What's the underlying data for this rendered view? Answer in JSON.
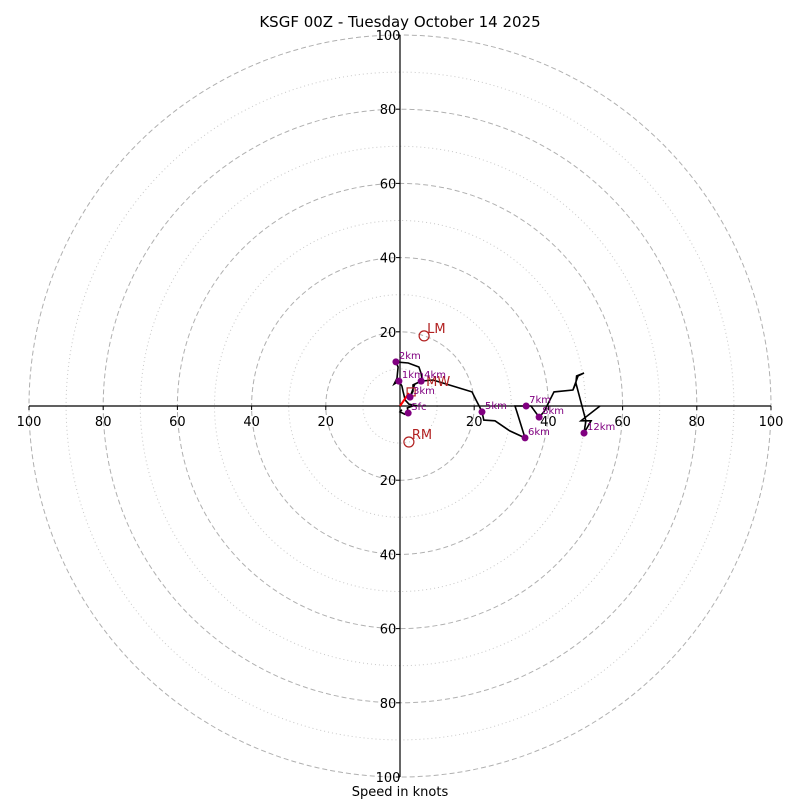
{
  "chart_data": {
    "type": "hodograph",
    "title": "KSGF 00Z - Tuesday October 14 2025",
    "xlabel": "Speed in knots",
    "units": "knots",
    "axis_range": [
      -100,
      100
    ],
    "ring_major": [
      20,
      40,
      60,
      80,
      100
    ],
    "ring_minor": [
      10,
      30,
      50,
      70,
      90
    ],
    "x_tick_labels": [
      "100",
      "80",
      "60",
      "40",
      "20",
      "20",
      "40",
      "60",
      "80",
      "100"
    ],
    "x_tick_values": [
      -100,
      -80,
      -60,
      -40,
      -20,
      20,
      40,
      60,
      80,
      100
    ],
    "y_tick_labels": [
      "100",
      "80",
      "60",
      "40",
      "20",
      "20",
      "40",
      "60",
      "80",
      "100"
    ],
    "y_tick_values": [
      100,
      80,
      60,
      40,
      20,
      -20,
      -40,
      -60,
      -80,
      -100
    ],
    "grid": true,
    "colors": {
      "trace": "#000000",
      "height_marker": "#800080",
      "storm_motion": "#b22222",
      "shear_vector": "#ff0000",
      "grid": "#b0b0b0",
      "axis": "#000000"
    },
    "trace": [
      [
        0.5,
        -1.0
      ],
      [
        0.0,
        -1.6
      ],
      [
        1.3,
        -2.2
      ],
      [
        2.2,
        -1.9
      ],
      [
        2.0,
        -0.5
      ],
      [
        4.0,
        0.2
      ],
      [
        2.4,
        0.5
      ],
      [
        1.4,
        1.6
      ],
      [
        0.8,
        4.0
      ],
      [
        0.5,
        5.4
      ],
      [
        -0.3,
        6.7
      ],
      [
        -1.6,
        5.9
      ],
      [
        -0.8,
        7.5
      ],
      [
        -0.5,
        10.5
      ],
      [
        -1.1,
        11.9
      ],
      [
        2.2,
        11.6
      ],
      [
        5.1,
        10.5
      ],
      [
        5.7,
        8.8
      ],
      [
        5.9,
        7.5
      ],
      [
        5.7,
        6.7
      ],
      [
        3.5,
        5.7
      ],
      [
        3.5,
        4.0
      ],
      [
        2.7,
        2.4
      ],
      [
        4.0,
        5.9
      ],
      [
        5.7,
        6.7
      ],
      [
        8.9,
        7.0
      ],
      [
        19.4,
        3.8
      ],
      [
        20.5,
        1.6
      ],
      [
        21.6,
        -0.5
      ],
      [
        22.1,
        -1.6
      ],
      [
        22.6,
        -3.8
      ],
      [
        25.6,
        -4.0
      ],
      [
        29.6,
        -6.7
      ],
      [
        33.7,
        -8.6
      ],
      [
        31.5,
        -1.6
      ],
      [
        31.0,
        0.0
      ],
      [
        34.0,
        0.0
      ],
      [
        35.3,
        0.0
      ],
      [
        37.5,
        -3.0
      ],
      [
        38.8,
        -1.6
      ],
      [
        41.5,
        3.8
      ],
      [
        46.6,
        4.3
      ],
      [
        47.4,
        6.2
      ],
      [
        47.6,
        8.1
      ],
      [
        49.6,
        8.9
      ],
      [
        48.0,
        8.1
      ],
      [
        46.6,
        4.3
      ],
      [
        47.4,
        6.2
      ],
      [
        50.1,
        -4.0
      ],
      [
        49.6,
        -7.3
      ],
      [
        51.5,
        -4.0
      ],
      [
        48.8,
        -4.0
      ],
      [
        53.9,
        0.0
      ]
    ],
    "height_markers": [
      {
        "label": "Sfc",
        "u": 2.2,
        "v": -1.9
      },
      {
        "label": "1km",
        "u": -0.3,
        "v": 6.7
      },
      {
        "label": "2km",
        "u": -1.1,
        "v": 11.9
      },
      {
        "label": "3km",
        "u": 2.7,
        "v": 2.4
      },
      {
        "label": "4km",
        "u": 5.7,
        "v": 6.7
      },
      {
        "label": "5km",
        "u": 22.1,
        "v": -1.6
      },
      {
        "label": "6km",
        "u": 33.7,
        "v": -8.6
      },
      {
        "label": "7km",
        "u": 34.0,
        "v": 0.0
      },
      {
        "label": "8km",
        "u": 37.5,
        "v": -3.0
      },
      {
        "label": "12km",
        "u": 49.6,
        "v": -7.3
      }
    ],
    "storm_motion": [
      {
        "label": "LM",
        "u": 6.5,
        "v": 18.9,
        "marker": "circle"
      },
      {
        "label": "RM",
        "u": 2.4,
        "v": -9.7,
        "marker": "circle"
      },
      {
        "label": "MW",
        "u": 3.0,
        "v": 3.8,
        "marker": "square"
      }
    ],
    "shear_vector": {
      "from": [
        0.0,
        0.0
      ],
      "to": [
        2.4,
        3.5
      ]
    }
  }
}
